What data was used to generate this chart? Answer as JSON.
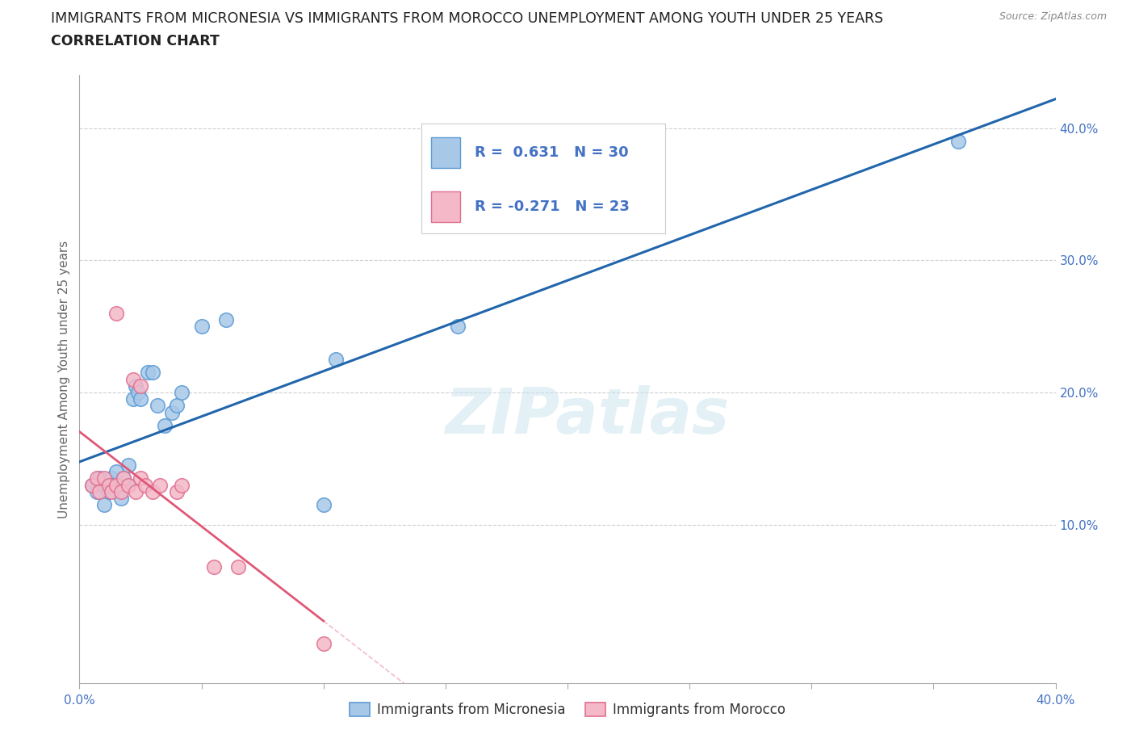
{
  "title_line1": "IMMIGRANTS FROM MICRONESIA VS IMMIGRANTS FROM MOROCCO UNEMPLOYMENT AMONG YOUTH UNDER 25 YEARS",
  "title_line2": "CORRELATION CHART",
  "source": "Source: ZipAtlas.com",
  "ylabel": "Unemployment Among Youth under 25 years",
  "xlim": [
    0.0,
    0.4
  ],
  "ylim": [
    -0.02,
    0.44
  ],
  "micro_R": 0.631,
  "micro_N": 30,
  "morocco_R": -0.271,
  "morocco_N": 23,
  "micro_color": "#a8c8e8",
  "micro_color_edge": "#5b9bd5",
  "morocco_color": "#f4b8c8",
  "morocco_color_edge": "#e07090",
  "micro_line_color": "#2166ac",
  "morocco_line_color": "#e05878",
  "text_color": "#4472c4",
  "grid_color": "#bbbbbb",
  "background_color": "#ffffff",
  "watermark": "ZIPatlas",
  "micro_x": [
    0.005,
    0.007,
    0.008,
    0.01,
    0.01,
    0.012,
    0.013,
    0.015,
    0.015,
    0.017,
    0.018,
    0.02,
    0.02,
    0.022,
    0.023,
    0.024,
    0.025,
    0.028,
    0.03,
    0.032,
    0.035,
    0.038,
    0.04,
    0.042,
    0.05,
    0.06,
    0.1,
    0.105,
    0.155,
    0.36
  ],
  "micro_y": [
    0.13,
    0.125,
    0.135,
    0.115,
    0.13,
    0.125,
    0.135,
    0.13,
    0.14,
    0.12,
    0.135,
    0.13,
    0.145,
    0.195,
    0.205,
    0.2,
    0.195,
    0.215,
    0.215,
    0.19,
    0.175,
    0.185,
    0.19,
    0.2,
    0.25,
    0.255,
    0.115,
    0.225,
    0.25,
    0.39
  ],
  "morocco_x": [
    0.005,
    0.007,
    0.008,
    0.01,
    0.012,
    0.013,
    0.015,
    0.015,
    0.017,
    0.018,
    0.02,
    0.022,
    0.023,
    0.025,
    0.025,
    0.027,
    0.03,
    0.033,
    0.04,
    0.042,
    0.055,
    0.065,
    0.1
  ],
  "morocco_y": [
    0.13,
    0.135,
    0.125,
    0.135,
    0.13,
    0.125,
    0.13,
    0.26,
    0.125,
    0.135,
    0.13,
    0.21,
    0.125,
    0.135,
    0.205,
    0.13,
    0.125,
    0.13,
    0.125,
    0.13,
    0.068,
    0.068,
    0.01
  ]
}
